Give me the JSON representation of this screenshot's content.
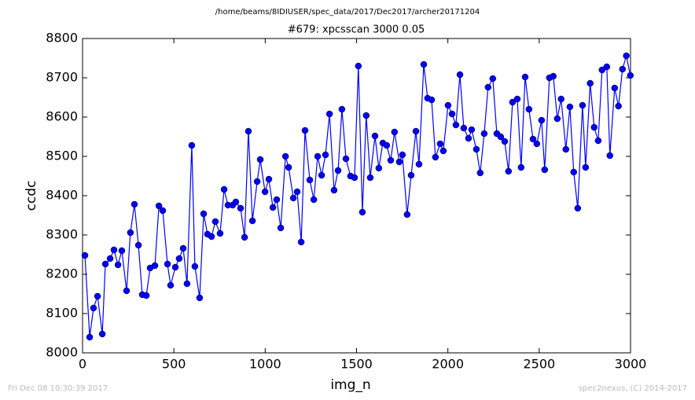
{
  "chart_data": {
    "type": "line",
    "suptitle": "/home/beams/8IDIUSER/spec_data/2017/Dec2017/archer20171204",
    "title": "#679: xpcsscan 3000 0.05",
    "x_label": "img_n",
    "y_label": "ccdc",
    "footer_left": "Fri Dec 08 10:30:39 2017",
    "footer_right": "spec2nexus, (C) 2014-2017",
    "x": [
      13,
      39,
      60,
      82,
      108,
      125,
      151,
      172,
      194,
      215,
      241,
      262,
      284,
      306,
      327,
      349,
      370,
      396,
      418,
      439,
      465,
      482,
      508,
      529,
      551,
      572,
      598,
      615,
      641,
      663,
      684,
      706,
      727,
      753,
      775,
      796,
      822,
      839,
      865,
      887,
      908,
      930,
      956,
      973,
      999,
      1020,
      1042,
      1063,
      1085,
      1111,
      1128,
      1154,
      1175,
      1197,
      1218,
      1244,
      1266,
      1287,
      1309,
      1330,
      1352,
      1377,
      1399,
      1420,
      1442,
      1467,
      1489,
      1510,
      1532,
      1553,
      1575,
      1601,
      1622,
      1644,
      1665,
      1687,
      1708,
      1734,
      1751,
      1777,
      1799,
      1825,
      1842,
      1868,
      1889,
      1911,
      1932,
      1958,
      1975,
      2001,
      2023,
      2044,
      2066,
      2087,
      2113,
      2130,
      2156,
      2177,
      2199,
      2220,
      2246,
      2268,
      2289,
      2311,
      2332,
      2354,
      2380,
      2401,
      2423,
      2444,
      2466,
      2487,
      2513,
      2530,
      2556,
      2577,
      2599,
      2620,
      2646,
      2668,
      2689,
      2711,
      2737,
      2754,
      2779,
      2801,
      2823,
      2844,
      2870,
      2887,
      2913,
      2934,
      2956,
      2977,
      2999
    ],
    "series": [
      {
        "name": "ccdc",
        "color": "#0000ff",
        "values": [
          8248,
          8040,
          8114,
          8144,
          8048,
          8226,
          8240,
          8262,
          8224,
          8260,
          8158,
          8306,
          8378,
          8274,
          8148,
          8146,
          8216,
          8222,
          8374,
          8362,
          8226,
          8172,
          8218,
          8240,
          8266,
          8176,
          8528,
          8220,
          8140,
          8354,
          8302,
          8296,
          8334,
          8304,
          8416,
          8376,
          8376,
          8384,
          8368,
          8294,
          8564,
          8336,
          8436,
          8492,
          8410,
          8442,
          8370,
          8390,
          8318,
          8500,
          8472,
          8394,
          8410,
          8282,
          8566,
          8440,
          8390,
          8500,
          8452,
          8504,
          8608,
          8414,
          8464,
          8620,
          8494,
          8450,
          8446,
          8730,
          8358,
          8604,
          8446,
          8552,
          8470,
          8534,
          8528,
          8490,
          8562,
          8486,
          8504,
          8352,
          8452,
          8564,
          8480,
          8734,
          8648,
          8644,
          8498,
          8532,
          8514,
          8630,
          8608,
          8580,
          8708,
          8572,
          8546,
          8568,
          8518,
          8458,
          8558,
          8676,
          8698,
          8558,
          8550,
          8538,
          8462,
          8638,
          8646,
          8472,
          8702,
          8620,
          8544,
          8532,
          8592,
          8466,
          8700,
          8704,
          8596,
          8646,
          8518,
          8626,
          8460,
          8368,
          8630,
          8472,
          8686,
          8574,
          8540,
          8720,
          8728,
          8502,
          8674,
          8628,
          8722,
          8756,
          8706
        ]
      }
    ],
    "xlim": [
      0,
      3000
    ],
    "xticks": [
      0,
      500,
      1000,
      1500,
      2000,
      2500,
      3000
    ],
    "ylim": [
      8000,
      8800
    ],
    "yticks": [
      8000,
      8100,
      8200,
      8300,
      8400,
      8500,
      8600,
      8700,
      8800
    ]
  }
}
